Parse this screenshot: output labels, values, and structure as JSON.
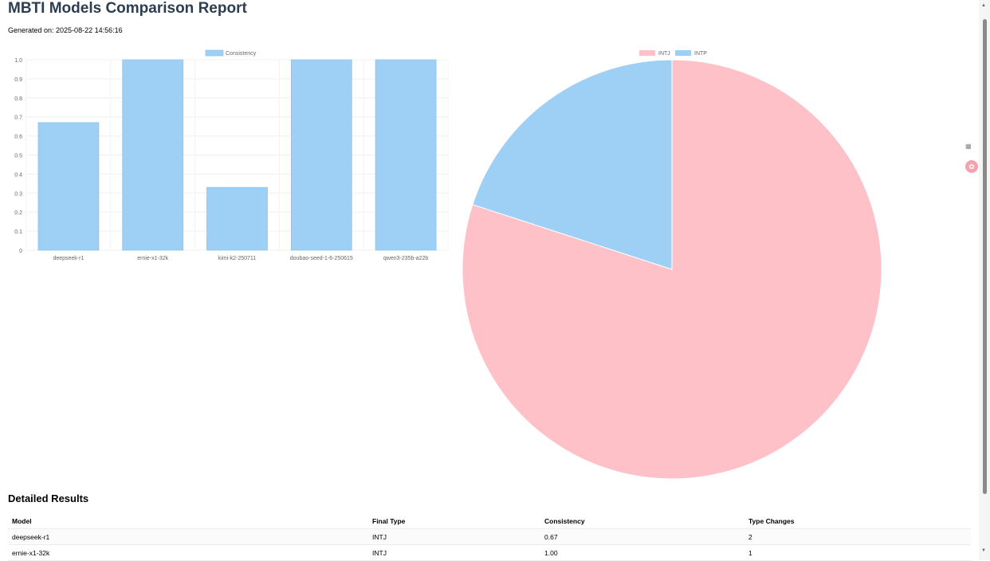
{
  "title": "MBTI Models Comparison Report",
  "generated": "Generated on: 2025-08-22 14:56:16",
  "chart_data": [
    {
      "type": "bar",
      "legend": [
        "Consistency"
      ],
      "legend_position": "top",
      "categories": [
        "deepseek-r1",
        "ernie-x1-32k",
        "kimi-k2-250711",
        "doubao-seed-1-6-250615",
        "qwen3-235b-a22b"
      ],
      "values": [
        0.67,
        1.0,
        0.33,
        1.0,
        1.0
      ],
      "yticks": [
        "0",
        "0.1",
        "0.2",
        "0.3",
        "0.4",
        "0.5",
        "0.6",
        "0.7",
        "0.8",
        "0.9",
        "1.0"
      ],
      "ylim": [
        0,
        1
      ],
      "grid": true,
      "color": "#9ed0f5"
    },
    {
      "type": "pie",
      "legend_position": "top",
      "labels": [
        "INTJ",
        "INTP"
      ],
      "values": [
        4,
        1
      ],
      "colors": [
        "#ffc1c8",
        "#9ed0f5"
      ]
    }
  ],
  "table": {
    "heading": "Detailed Results",
    "columns": [
      "Model",
      "Final Type",
      "Consistency",
      "Type Changes"
    ],
    "rows": [
      [
        "deepseek-r1",
        "INTJ",
        "0.67",
        "2"
      ],
      [
        "ernie-x1-32k",
        "INTJ",
        "1.00",
        "1"
      ]
    ]
  }
}
